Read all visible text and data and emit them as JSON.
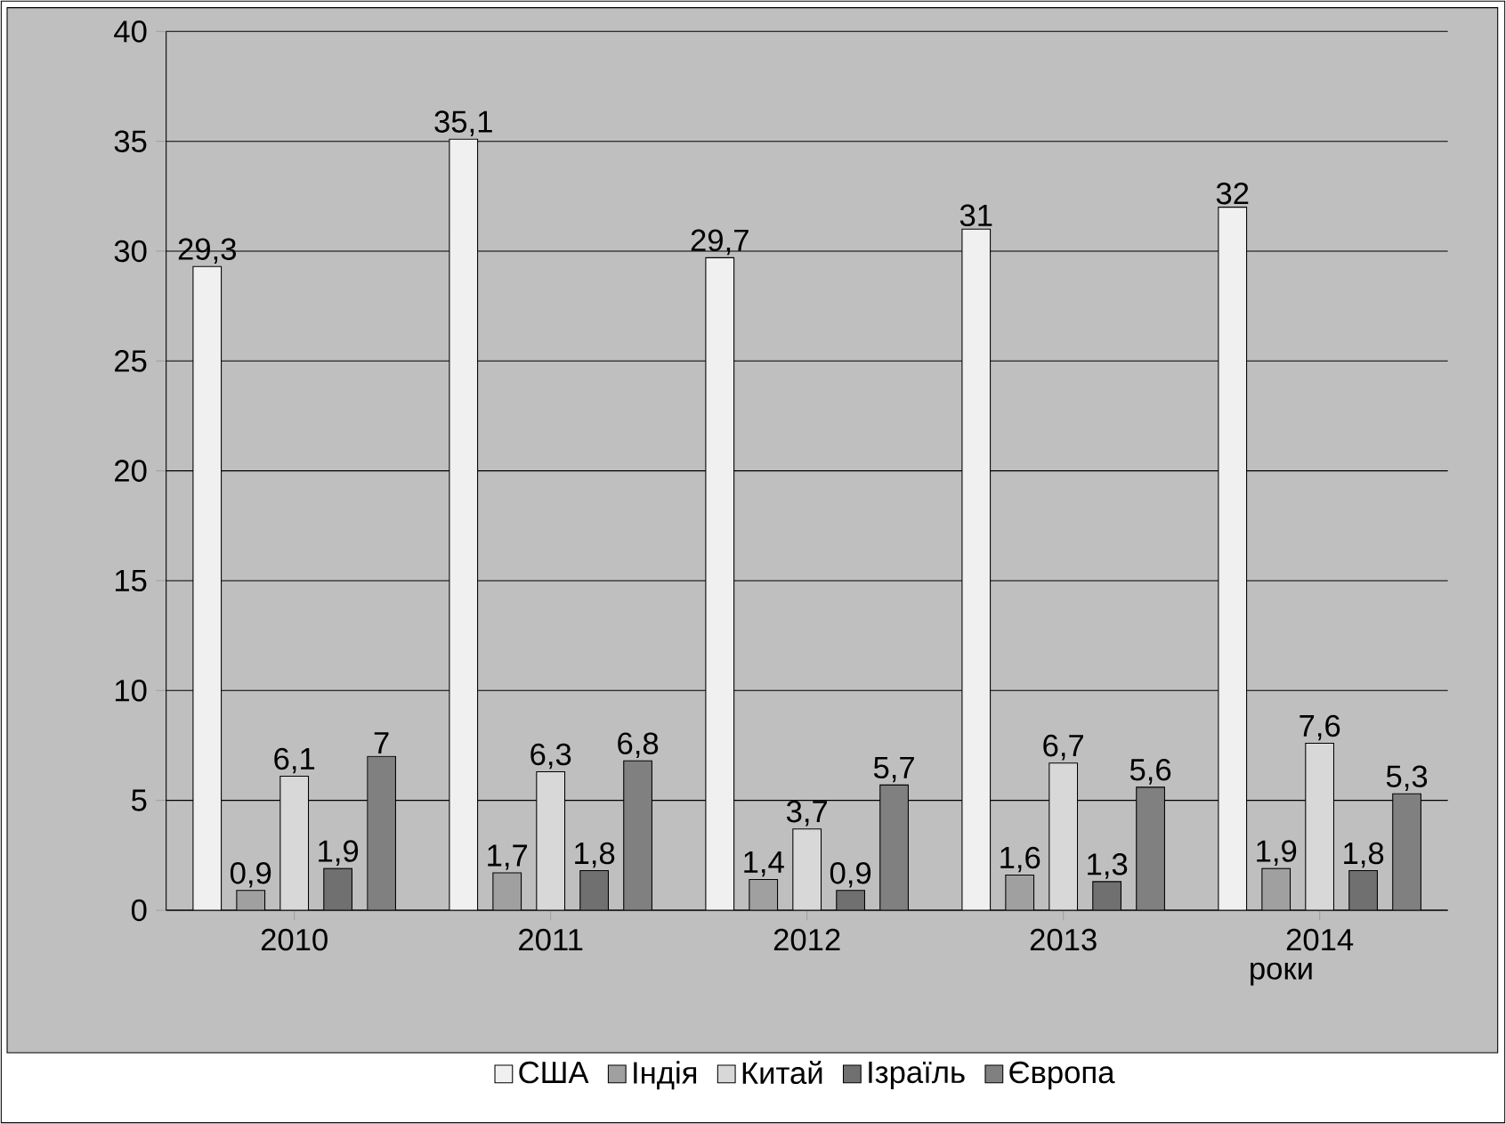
{
  "chart_data": {
    "type": "bar",
    "xlabel": "роки",
    "categories": [
      "2010",
      "2011",
      "2012",
      "2013",
      "2014"
    ],
    "series": [
      {
        "name": "США",
        "color": "#f0f0f0",
        "values": [
          29.3,
          35.1,
          29.7,
          31,
          32
        ],
        "value_labels": [
          "29,3",
          "35,1",
          "29,7",
          "31",
          "32"
        ]
      },
      {
        "name": "Індія",
        "color": "#a0a0a0",
        "values": [
          0.9,
          1.7,
          1.4,
          1.6,
          1.9
        ],
        "value_labels": [
          "0,9",
          "1,7",
          "1,4",
          "1,6",
          "1,9"
        ]
      },
      {
        "name": "Китай",
        "color": "#d8d8d8",
        "values": [
          6.1,
          6.3,
          3.7,
          6.7,
          7.6
        ],
        "value_labels": [
          "6,1",
          "6,3",
          "3,7",
          "6,7",
          "7,6"
        ]
      },
      {
        "name": "Ізраїль",
        "color": "#707070",
        "values": [
          1.9,
          1.8,
          0.9,
          1.3,
          1.8
        ],
        "value_labels": [
          "1,9",
          "1,8",
          "0,9",
          "1,3",
          "1,8"
        ]
      },
      {
        "name": "Європа",
        "color": "#808080",
        "values": [
          7,
          6.8,
          5.7,
          5.6,
          5.3
        ],
        "value_labels": [
          "7",
          "6,8",
          "5,7",
          "5,6",
          "5,3"
        ]
      }
    ],
    "ylim": [
      0,
      40
    ],
    "yticks": [
      0,
      5,
      10,
      15,
      20,
      25,
      30,
      35,
      40
    ],
    "grid": "y",
    "legend": "bottom"
  }
}
